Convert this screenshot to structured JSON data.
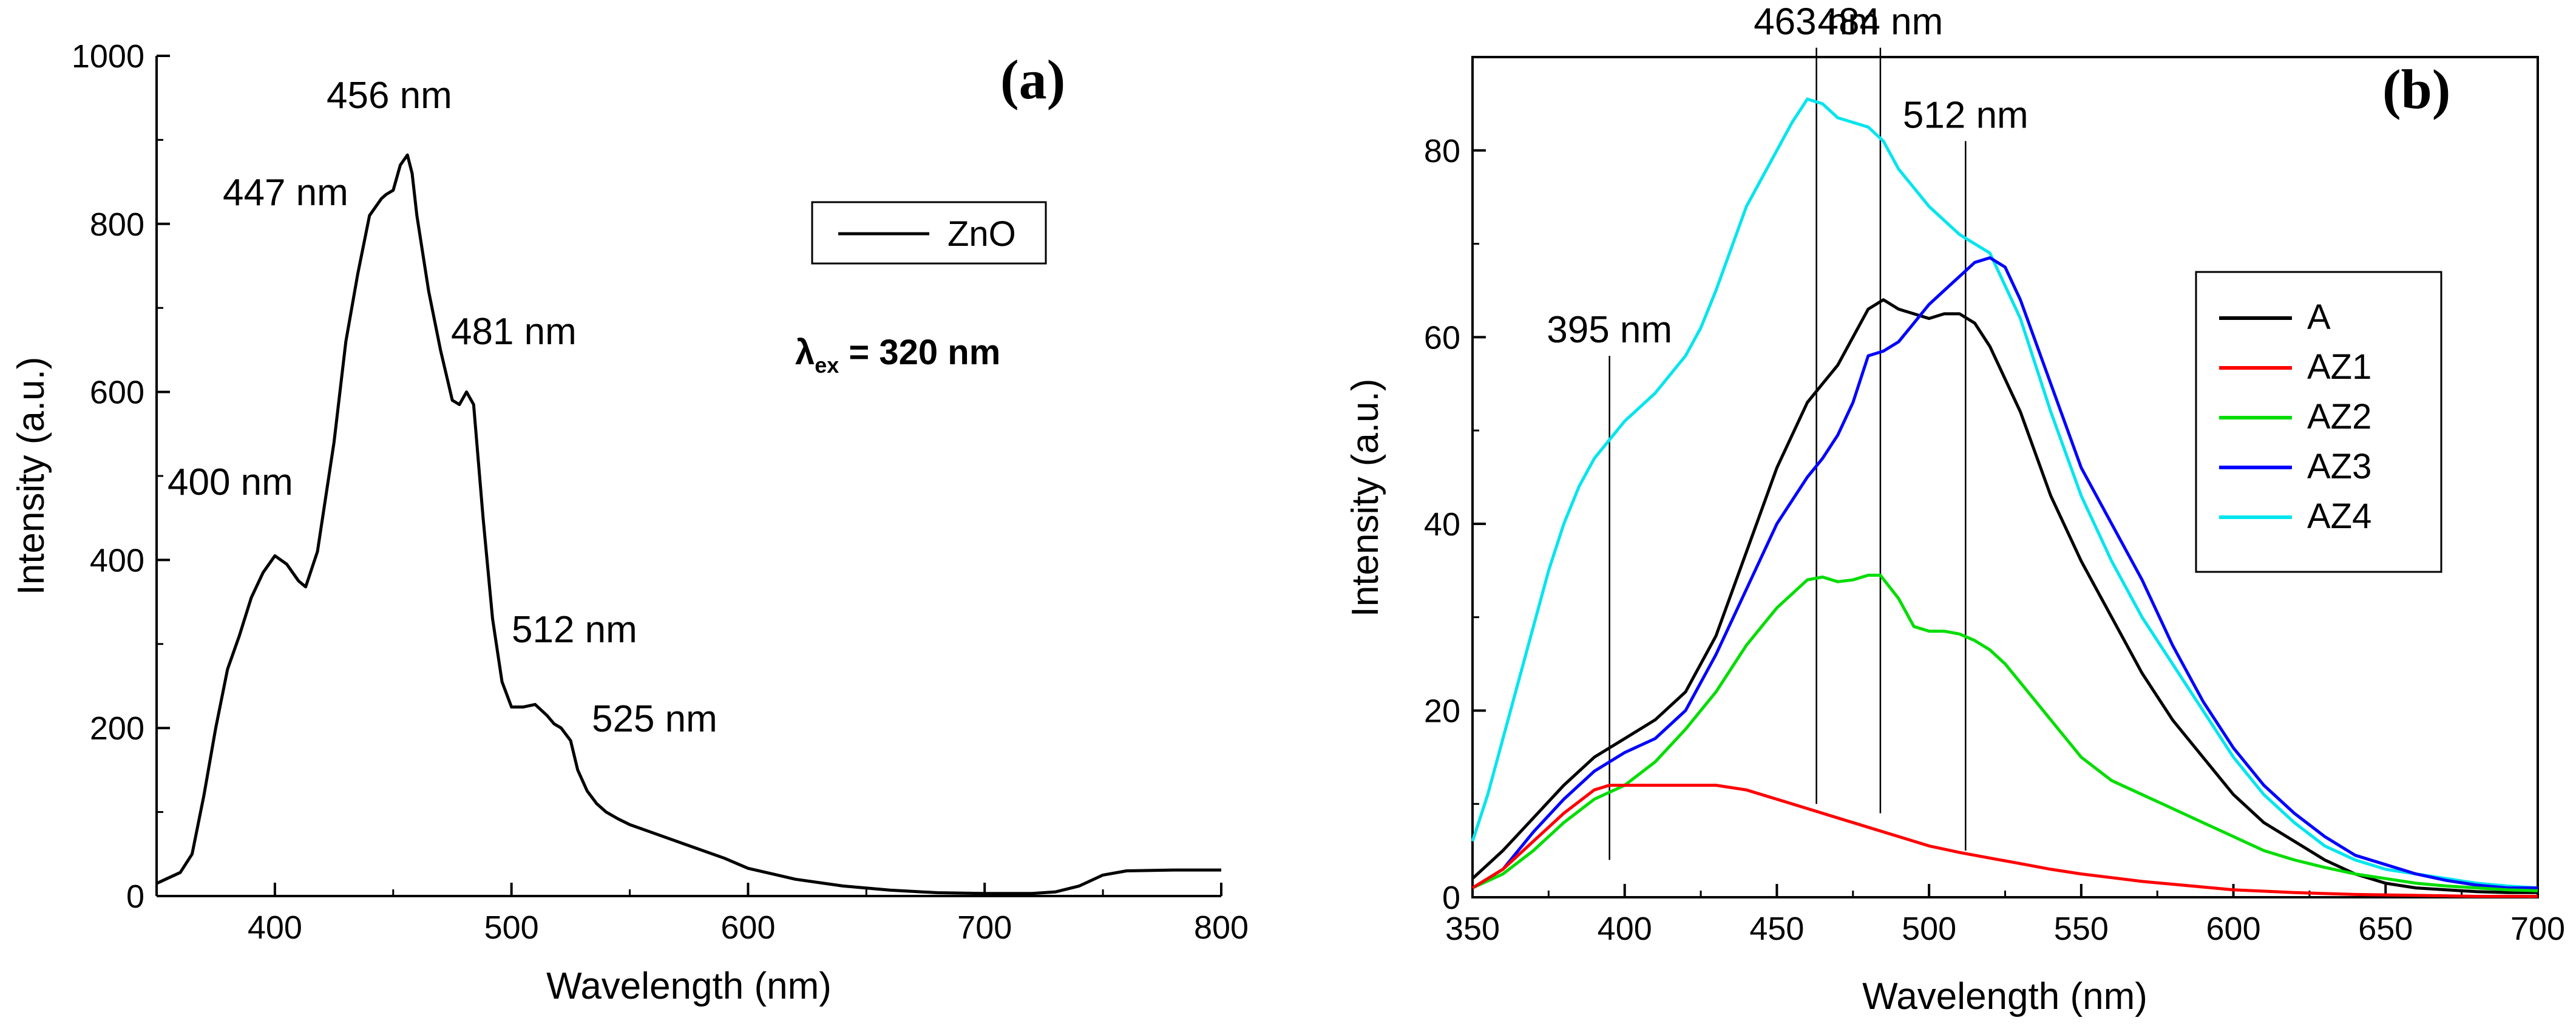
{
  "chart_data": [
    {
      "type": "line",
      "panel": "(a)",
      "xlabel": "Wavelength (nm)",
      "ylabel": "Intensity (a.u.)",
      "xlim": [
        350,
        800
      ],
      "ylim": [
        0,
        1000
      ],
      "xticks": [
        400,
        500,
        600,
        700,
        800
      ],
      "yticks": [
        0,
        200,
        400,
        600,
        800,
        1000
      ],
      "legend": {
        "placement": "top-right",
        "entries": [
          "ZnO"
        ]
      },
      "condition": {
        "symbol": "λ",
        "subscript": "ex",
        "value": " = 320 nm"
      },
      "series": [
        {
          "name": "ZnO",
          "color": "#000000",
          "x": [
            350,
            360,
            365,
            370,
            375,
            380,
            385,
            390,
            395,
            400,
            405,
            410,
            413,
            418,
            425,
            430,
            435,
            440,
            445,
            447,
            450,
            453,
            456,
            458,
            460,
            465,
            470,
            475,
            478,
            481,
            484,
            488,
            492,
            496,
            500,
            505,
            510,
            515,
            518,
            521,
            525,
            528,
            532,
            536,
            540,
            545,
            550,
            560,
            575,
            590,
            600,
            620,
            640,
            660,
            680,
            700,
            720,
            730,
            740,
            750,
            760,
            780,
            800
          ],
          "values": [
            15,
            28,
            50,
            120,
            200,
            270,
            310,
            355,
            385,
            405,
            395,
            375,
            368,
            410,
            540,
            660,
            740,
            810,
            830,
            835,
            840,
            870,
            882,
            860,
            810,
            720,
            650,
            590,
            585,
            600,
            585,
            450,
            330,
            255,
            225,
            225,
            228,
            215,
            205,
            200,
            185,
            150,
            125,
            110,
            100,
            92,
            85,
            75,
            60,
            45,
            33,
            20,
            12,
            7,
            4,
            3,
            3,
            5,
            12,
            25,
            30,
            31,
            31
          ]
        }
      ],
      "annotations": [
        {
          "text": "456 nm",
          "x": 456,
          "y": 882
        },
        {
          "text": "447 nm",
          "x": 447,
          "y": 835
        },
        {
          "text": "481 nm",
          "x": 481,
          "y": 600
        },
        {
          "text": "400 nm",
          "x": 400,
          "y": 405
        },
        {
          "text": "512 nm",
          "x": 512,
          "y": 228
        },
        {
          "text": "525 nm",
          "x": 525,
          "y": 185
        }
      ]
    },
    {
      "type": "line",
      "panel": "(b)",
      "xlabel": "Wavelength (nm)",
      "ylabel": "Intensity (a.u.)",
      "xlim": [
        350,
        700
      ],
      "ylim": [
        0,
        90
      ],
      "xticks": [
        350,
        400,
        450,
        500,
        550,
        600,
        650,
        700
      ],
      "yticks": [
        0,
        20,
        40,
        60,
        80
      ],
      "legend": {
        "placement": "right",
        "entries": [
          "A",
          "AZ1",
          "AZ2",
          "AZ3",
          "AZ4"
        ]
      },
      "reference_lines": [
        {
          "label": "395 nm",
          "x": 395,
          "y_from": 4,
          "y_to": 58
        },
        {
          "label": "463 nm",
          "x": 463,
          "y_from": 10,
          "y_to": 91
        },
        {
          "label": "484 nm",
          "x": 484,
          "y_from": 9,
          "y_to": 91
        },
        {
          "label": "512 nm",
          "x": 512,
          "y_from": 5,
          "y_to": 81
        }
      ],
      "series": [
        {
          "name": "A",
          "color": "#000000",
          "x": [
            350,
            360,
            370,
            380,
            390,
            400,
            410,
            420,
            430,
            440,
            450,
            460,
            465,
            470,
            475,
            480,
            485,
            490,
            495,
            500,
            505,
            510,
            515,
            520,
            530,
            540,
            550,
            560,
            570,
            580,
            590,
            600,
            610,
            620,
            630,
            640,
            650,
            660,
            670,
            680,
            690,
            700
          ],
          "values": [
            2,
            5,
            8.5,
            12,
            15,
            17,
            19,
            22,
            28,
            37,
            46,
            53,
            55,
            57,
            60,
            63,
            64,
            63,
            62.5,
            62,
            62.5,
            62.5,
            61.5,
            59,
            52,
            43,
            36,
            30,
            24,
            19,
            15,
            11,
            8,
            6,
            4,
            2.5,
            1.5,
            1,
            0.8,
            0.6,
            0.5,
            0.5
          ]
        },
        {
          "name": "AZ1",
          "color": "#ff0000",
          "x": [
            350,
            360,
            370,
            380,
            390,
            395,
            400,
            410,
            420,
            430,
            440,
            450,
            460,
            470,
            480,
            490,
            500,
            510,
            520,
            530,
            540,
            550,
            560,
            570,
            580,
            590,
            600,
            620,
            640,
            660,
            680,
            700
          ],
          "values": [
            1,
            3,
            6,
            9,
            11.5,
            12,
            12,
            12,
            12,
            12,
            11.5,
            10.5,
            9.5,
            8.5,
            7.5,
            6.5,
            5.5,
            4.8,
            4.2,
            3.6,
            3,
            2.5,
            2.1,
            1.7,
            1.4,
            1.1,
            0.8,
            0.5,
            0.3,
            0.2,
            0.1,
            0.1
          ]
        },
        {
          "name": "AZ2",
          "color": "#00dd00",
          "x": [
            350,
            360,
            370,
            380,
            390,
            400,
            410,
            420,
            430,
            440,
            450,
            460,
            465,
            470,
            475,
            480,
            484,
            490,
            495,
            500,
            505,
            510,
            515,
            520,
            525,
            530,
            540,
            550,
            560,
            570,
            580,
            590,
            600,
            610,
            620,
            630,
            640,
            650,
            660,
            670,
            680,
            690,
            700
          ],
          "values": [
            1,
            2.5,
            5,
            8,
            10.5,
            12,
            14.5,
            18,
            22,
            27,
            31,
            34,
            34.3,
            33.8,
            34,
            34.5,
            34.5,
            32,
            29,
            28.5,
            28.5,
            28.2,
            27.5,
            26.5,
            25,
            23,
            19,
            15,
            12.5,
            11,
            9.5,
            8,
            6.5,
            5,
            4,
            3.2,
            2.5,
            2,
            1.5,
            1.2,
            1,
            0.8,
            0.7
          ]
        },
        {
          "name": "AZ3",
          "color": "#0000ff",
          "x": [
            350,
            360,
            370,
            380,
            390,
            400,
            410,
            420,
            430,
            440,
            450,
            460,
            465,
            470,
            475,
            480,
            485,
            490,
            495,
            500,
            505,
            510,
            515,
            520,
            525,
            530,
            540,
            550,
            560,
            570,
            580,
            590,
            600,
            610,
            620,
            630,
            640,
            650,
            660,
            670,
            680,
            690,
            700
          ],
          "values": [
            1,
            3,
            7,
            10.5,
            13.5,
            15.5,
            17,
            20,
            26,
            33,
            40,
            45,
            47,
            49.5,
            53,
            58,
            58.5,
            59.5,
            61.5,
            63.5,
            65,
            66.5,
            68,
            68.5,
            67.5,
            64,
            55,
            46,
            40,
            34,
            27,
            21,
            16,
            12,
            9,
            6.5,
            4.5,
            3.5,
            2.5,
            1.8,
            1.3,
            1,
            1
          ]
        },
        {
          "name": "AZ4",
          "color": "#00e5ee",
          "x": [
            350,
            355,
            360,
            365,
            370,
            375,
            380,
            385,
            390,
            395,
            400,
            405,
            410,
            415,
            420,
            425,
            430,
            440,
            450,
            455,
            460,
            465,
            470,
            475,
            480,
            485,
            490,
            495,
            500,
            505,
            510,
            515,
            520,
            530,
            540,
            550,
            560,
            570,
            580,
            590,
            600,
            610,
            620,
            630,
            640,
            650,
            660,
            670,
            680,
            690,
            700
          ],
          "values": [
            6,
            11,
            17,
            23,
            29,
            35,
            40,
            44,
            47,
            49,
            51,
            52.5,
            54,
            56,
            58,
            61,
            65,
            74,
            80,
            83,
            85.5,
            85,
            83.5,
            83,
            82.5,
            81,
            78,
            76,
            74,
            72.5,
            71,
            70,
            69,
            62,
            52,
            43,
            36,
            30,
            25,
            20,
            15,
            11,
            8,
            5.5,
            4,
            3,
            2.5,
            2,
            1.5,
            1.2,
            1
          ]
        }
      ]
    }
  ]
}
